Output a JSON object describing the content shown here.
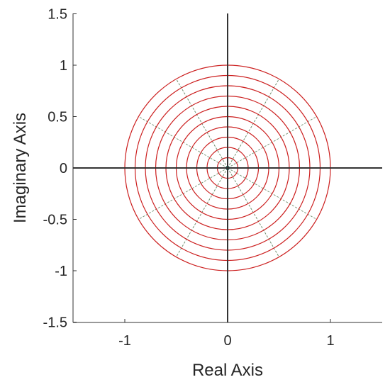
{
  "chart_data": {
    "type": "polar-grid",
    "xlabel": "Real Axis",
    "ylabel": "Imaginary Axis",
    "xlim": [
      -1.5,
      1.5
    ],
    "ylim": [
      -1.5,
      1.5
    ],
    "x_ticks": [
      {
        "value": -1,
        "label": "-1"
      },
      {
        "value": 0,
        "label": "0"
      },
      {
        "value": 1,
        "label": "1"
      }
    ],
    "y_ticks": [
      {
        "value": 1.5,
        "label": "1.5"
      },
      {
        "value": 1,
        "label": "1"
      },
      {
        "value": 0.5,
        "label": "0.5"
      },
      {
        "value": 0,
        "label": "0"
      },
      {
        "value": -0.5,
        "label": "-0.5"
      },
      {
        "value": -1,
        "label": "-1"
      },
      {
        "value": -1.5,
        "label": "-1.5"
      }
    ],
    "circle_radii": [
      0.1,
      0.2,
      0.3,
      0.4,
      0.5,
      0.6,
      0.7,
      0.8,
      0.9,
      1.0
    ],
    "radial_line_angles_deg": [
      0,
      30,
      60,
      90,
      120,
      150,
      180,
      210,
      240,
      270,
      300,
      330
    ],
    "colors": {
      "circles": "#cc1f1f",
      "radial_lines": "#6f8f6f",
      "axes": "#333333",
      "origin": "#1a6a5a"
    }
  }
}
